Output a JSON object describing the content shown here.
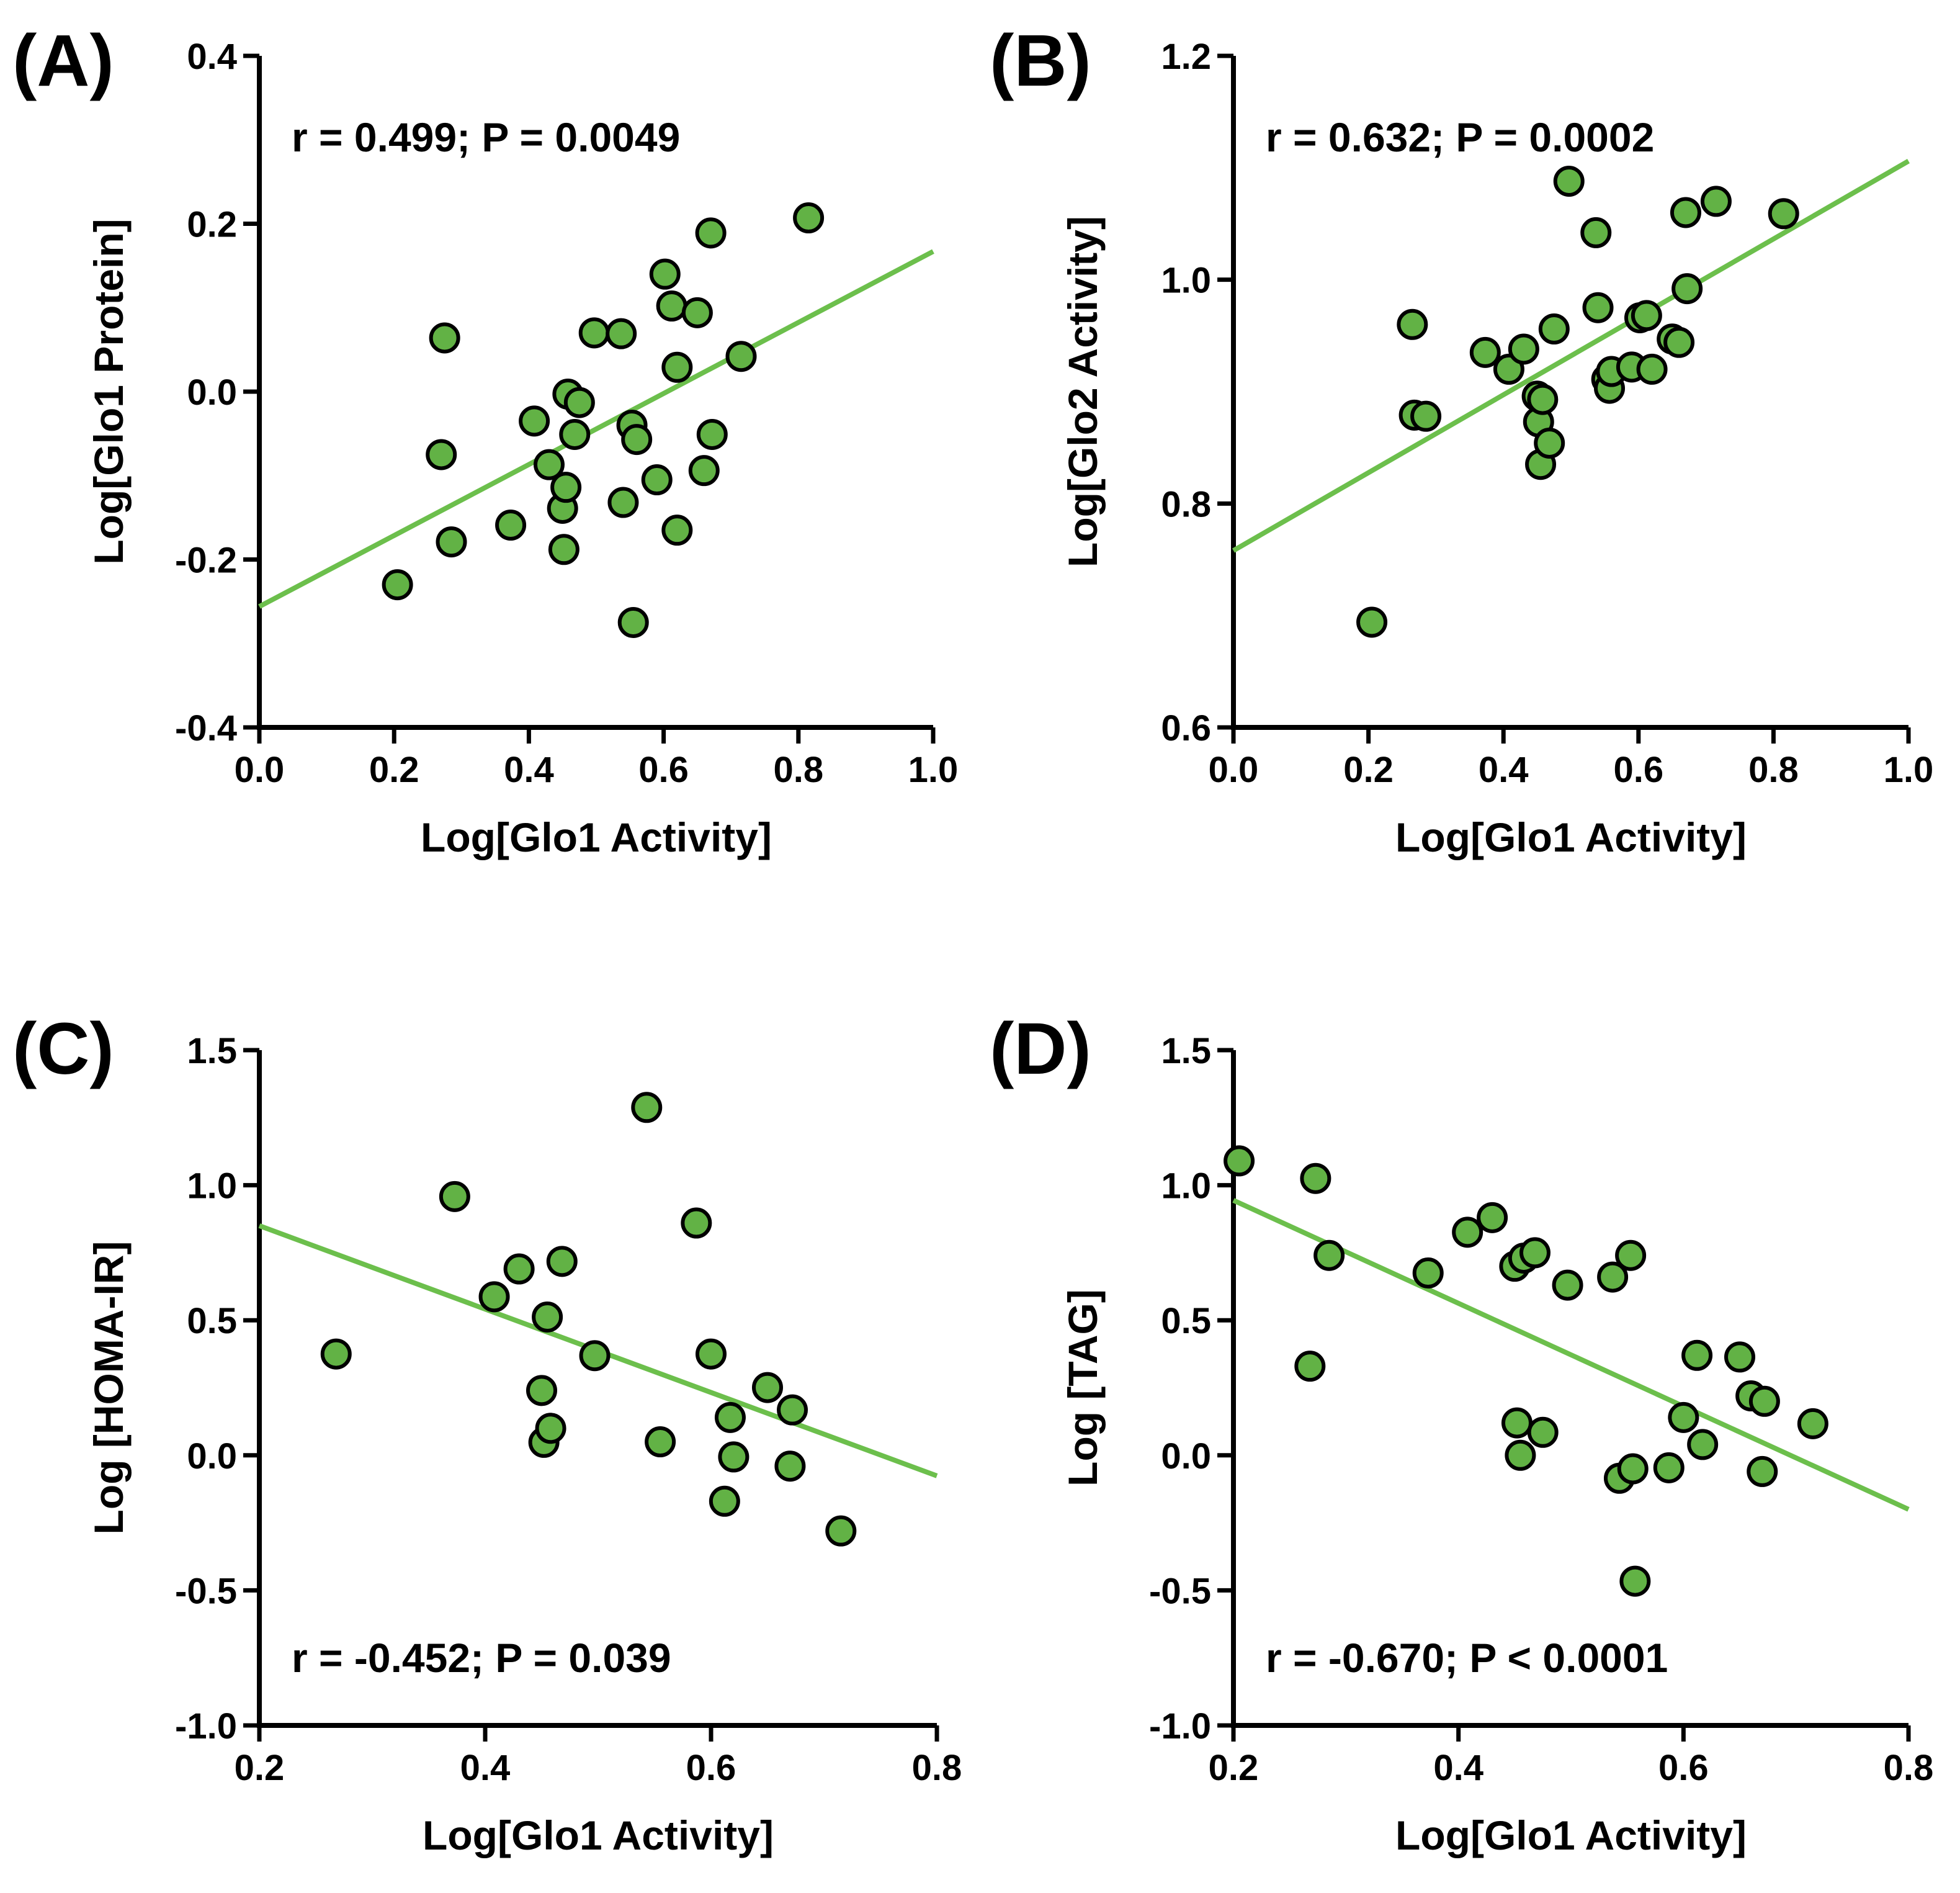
{
  "colors": {
    "point_fill": "#62b245",
    "fit_line": "#6cbf4c"
  },
  "chart_data": [
    {
      "type": "scatter",
      "panel_label": "(A)",
      "stat_text": "r = 0.499; P = 0.0049",
      "stat_position": "top-left",
      "xlabel": "Log[Glo1 Activity]",
      "ylabel": "Log[Glo1 Protein]",
      "xlim": [
        0.0,
        1.0
      ],
      "ylim": [
        -0.4,
        0.4
      ],
      "xticks": [
        0.0,
        0.2,
        0.4,
        0.6,
        0.8,
        1.0
      ],
      "xtick_labels": [
        "0.0",
        "0.2",
        "0.4",
        "0.6",
        "0.8",
        "1.0"
      ],
      "yticks": [
        -0.4,
        -0.2,
        0.0,
        0.2,
        0.4
      ],
      "ytick_labels": [
        "-0.4",
        "-0.2",
        "0.0",
        "0.2",
        "0.4"
      ],
      "fit": {
        "x": [
          0.0,
          1.0
        ],
        "y": [
          -0.256,
          0.167
        ]
      },
      "points": [
        [
          0.205,
          -0.23
        ],
        [
          0.27,
          -0.075
        ],
        [
          0.275,
          0.064
        ],
        [
          0.285,
          -0.179
        ],
        [
          0.373,
          -0.159
        ],
        [
          0.408,
          -0.035
        ],
        [
          0.43,
          -0.087
        ],
        [
          0.45,
          -0.139
        ],
        [
          0.452,
          -0.188
        ],
        [
          0.455,
          -0.114
        ],
        [
          0.458,
          -0.003
        ],
        [
          0.468,
          -0.051
        ],
        [
          0.475,
          -0.013
        ],
        [
          0.497,
          0.07
        ],
        [
          0.537,
          0.069
        ],
        [
          0.54,
          -0.132
        ],
        [
          0.553,
          -0.04
        ],
        [
          0.555,
          -0.275
        ],
        [
          0.56,
          -0.057
        ],
        [
          0.59,
          -0.105
        ],
        [
          0.602,
          0.14
        ],
        [
          0.612,
          0.102
        ],
        [
          0.62,
          0.029
        ],
        [
          0.62,
          -0.165
        ],
        [
          0.65,
          0.094
        ],
        [
          0.66,
          -0.094
        ],
        [
          0.67,
          0.189
        ],
        [
          0.672,
          -0.051
        ],
        [
          0.715,
          0.042
        ],
        [
          0.815,
          0.207
        ]
      ]
    },
    {
      "type": "scatter",
      "panel_label": "(B)",
      "stat_text": "r = 0.632; P = 0.0002",
      "stat_position": "top-left",
      "xlabel": "Log[Glo1 Activity]",
      "ylabel": "Log[Glo2 Activity]",
      "xlim": [
        0.0,
        1.0
      ],
      "ylim": [
        0.6,
        1.2
      ],
      "xticks": [
        0.0,
        0.2,
        0.4,
        0.6,
        0.8,
        1.0
      ],
      "xtick_labels": [
        "0.0",
        "0.2",
        "0.4",
        "0.6",
        "0.8",
        "1.0"
      ],
      "yticks": [
        0.6,
        0.8,
        1.0,
        1.2
      ],
      "ytick_labels": [
        "0.6",
        "0.8",
        "1.0",
        "1.2"
      ],
      "fit": {
        "x": [
          0.0,
          1.0
        ],
        "y": [
          0.758,
          1.106
        ]
      },
      "points": [
        [
          0.205,
          0.694
        ],
        [
          0.265,
          0.96
        ],
        [
          0.268,
          0.879
        ],
        [
          0.285,
          0.878
        ],
        [
          0.373,
          0.935
        ],
        [
          0.408,
          0.92
        ],
        [
          0.43,
          0.938
        ],
        [
          0.45,
          0.896
        ],
        [
          0.452,
          0.873
        ],
        [
          0.455,
          0.835
        ],
        [
          0.458,
          0.893
        ],
        [
          0.468,
          0.854
        ],
        [
          0.475,
          0.956
        ],
        [
          0.497,
          1.088
        ],
        [
          0.537,
          1.042
        ],
        [
          0.54,
          0.975
        ],
        [
          0.553,
          0.911
        ],
        [
          0.557,
          0.903
        ],
        [
          0.56,
          0.918
        ],
        [
          0.59,
          0.922
        ],
        [
          0.602,
          0.966
        ],
        [
          0.612,
          0.968
        ],
        [
          0.62,
          0.92
        ],
        [
          0.65,
          0.947
        ],
        [
          0.66,
          0.944
        ],
        [
          0.67,
          1.06
        ],
        [
          0.672,
          0.992
        ],
        [
          0.715,
          1.07
        ],
        [
          0.815,
          1.059
        ]
      ]
    },
    {
      "type": "scatter",
      "panel_label": "(C)",
      "stat_text": "r = -0.452; P = 0.039",
      "stat_position": "bottom-left",
      "xlabel": "Log[Glo1 Activity]",
      "ylabel": "Log [HOMA-IR]",
      "xlim": [
        0.2,
        0.8
      ],
      "ylim": [
        -1.0,
        1.5
      ],
      "xticks": [
        0.2,
        0.4,
        0.6,
        0.8
      ],
      "xtick_labels": [
        "0.2",
        "0.4",
        "0.6",
        "0.8"
      ],
      "yticks": [
        -1.0,
        -0.5,
        0.0,
        0.5,
        1.0,
        1.5
      ],
      "ytick_labels": [
        "-1.0",
        "-0.5",
        "0.0",
        "0.5",
        "1.0",
        "1.5"
      ],
      "fit": {
        "x": [
          0.2,
          0.8
        ],
        "y": [
          0.85,
          -0.076
        ]
      },
      "points": [
        [
          0.268,
          0.375
        ],
        [
          0.373,
          0.958
        ],
        [
          0.408,
          0.587
        ],
        [
          0.43,
          0.69
        ],
        [
          0.45,
          0.24
        ],
        [
          0.452,
          0.048
        ],
        [
          0.455,
          0.512
        ],
        [
          0.458,
          0.1
        ],
        [
          0.468,
          0.718
        ],
        [
          0.497,
          0.369
        ],
        [
          0.543,
          1.288
        ],
        [
          0.555,
          0.05
        ],
        [
          0.587,
          0.86
        ],
        [
          0.6,
          0.375
        ],
        [
          0.612,
          -0.17
        ],
        [
          0.617,
          0.14
        ],
        [
          0.62,
          -0.006
        ],
        [
          0.65,
          0.251
        ],
        [
          0.67,
          -0.04
        ],
        [
          0.672,
          0.168
        ],
        [
          0.715,
          -0.28
        ]
      ]
    },
    {
      "type": "scatter",
      "panel_label": "(D)",
      "stat_text": "r = -0.670; P < 0.0001",
      "stat_position": "bottom-left",
      "xlabel": "Log[Glo1 Activity]",
      "ylabel": "Log [TAG]",
      "xlim": [
        0.2,
        0.8
      ],
      "ylim": [
        -1.0,
        1.5
      ],
      "xticks": [
        0.2,
        0.4,
        0.6,
        0.8
      ],
      "xtick_labels": [
        "0.2",
        "0.4",
        "0.6",
        "0.8"
      ],
      "yticks": [
        -1.0,
        -0.5,
        0.0,
        0.5,
        1.0,
        1.5
      ],
      "ytick_labels": [
        "-1.0",
        "-0.5",
        "0.0",
        "0.5",
        "1.0",
        "1.5"
      ],
      "fit": {
        "x": [
          0.2,
          0.8
        ],
        "y": [
          0.944,
          -0.2
        ]
      },
      "points": [
        [
          0.205,
          1.09
        ],
        [
          0.268,
          0.33
        ],
        [
          0.273,
          1.025
        ],
        [
          0.285,
          0.74
        ],
        [
          0.373,
          0.675
        ],
        [
          0.408,
          0.826
        ],
        [
          0.43,
          0.88
        ],
        [
          0.45,
          0.7
        ],
        [
          0.452,
          0.12
        ],
        [
          0.455,
          0.0
        ],
        [
          0.458,
          0.73
        ],
        [
          0.468,
          0.75
        ],
        [
          0.475,
          0.085
        ],
        [
          0.497,
          0.63
        ],
        [
          0.537,
          0.66
        ],
        [
          0.543,
          -0.085
        ],
        [
          0.553,
          0.74
        ],
        [
          0.555,
          -0.05
        ],
        [
          0.557,
          -0.466
        ],
        [
          0.587,
          -0.046
        ],
        [
          0.6,
          0.14
        ],
        [
          0.612,
          0.37
        ],
        [
          0.617,
          0.04
        ],
        [
          0.65,
          0.364
        ],
        [
          0.66,
          0.22
        ],
        [
          0.67,
          -0.06
        ],
        [
          0.672,
          0.2
        ],
        [
          0.715,
          0.117
        ]
      ]
    }
  ]
}
